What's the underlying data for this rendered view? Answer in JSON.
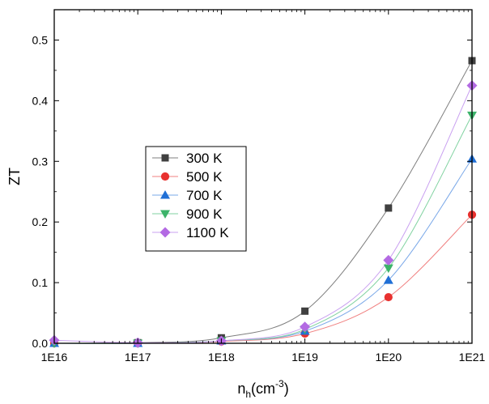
{
  "chart_data": {
    "type": "scatter",
    "xlabel": "n",
    "xlabel_sub": "h",
    "xlabel_unit": "(cm",
    "xlabel_sup": "-3",
    "xlabel_close": ")",
    "ylabel": "ZT",
    "x_scale": "log",
    "xlim": [
      1e+16,
      1e+21
    ],
    "ylim": [
      0,
      0.55
    ],
    "x_ticks": [
      {
        "value": 1e+16,
        "label": "1E16"
      },
      {
        "value": 1e+17,
        "label": "1E17"
      },
      {
        "value": 1e+18,
        "label": "1E18"
      },
      {
        "value": 1e+19,
        "label": "1E19"
      },
      {
        "value": 1e+20,
        "label": "1E20"
      },
      {
        "value": 1e+21,
        "label": "1E21"
      }
    ],
    "y_ticks": [
      {
        "value": 0.0,
        "label": "0.0"
      },
      {
        "value": 0.1,
        "label": "0.1"
      },
      {
        "value": 0.2,
        "label": "0.2"
      },
      {
        "value": 0.3,
        "label": "0.3"
      },
      {
        "value": 0.4,
        "label": "0.4"
      },
      {
        "value": 0.5,
        "label": "0.5"
      }
    ],
    "grid": false,
    "legend_position": "center-left",
    "x": [
      1e+16,
      1e+17,
      1e+18,
      1e+19,
      1e+20,
      1e+21
    ],
    "series": [
      {
        "name": "300 K",
        "marker": "square",
        "color": "#404040",
        "line_color": "#7f7f7f",
        "values": [
          0.0,
          0.001,
          0.009,
          0.053,
          0.223,
          0.466
        ]
      },
      {
        "name": "500 K",
        "marker": "circle",
        "color": "#e8312f",
        "line_color": "#f08080",
        "values": [
          0.0,
          0.0,
          0.003,
          0.016,
          0.076,
          0.212
        ]
      },
      {
        "name": "700 K",
        "marker": "triangle-up",
        "color": "#1f6fd6",
        "line_color": "#7aa8e8",
        "values": [
          0.0,
          0.0,
          0.004,
          0.02,
          0.104,
          0.304
        ]
      },
      {
        "name": "900 K",
        "marker": "triangle-down",
        "color": "#3cb36a",
        "line_color": "#80d2a0",
        "values": [
          0.0,
          0.0,
          0.004,
          0.023,
          0.124,
          0.376
        ]
      },
      {
        "name": "1100 K",
        "marker": "diamond",
        "color": "#b36ae3",
        "line_color": "#c9a0f0",
        "values": [
          0.005,
          0.001,
          0.004,
          0.027,
          0.137,
          0.425
        ]
      }
    ]
  }
}
